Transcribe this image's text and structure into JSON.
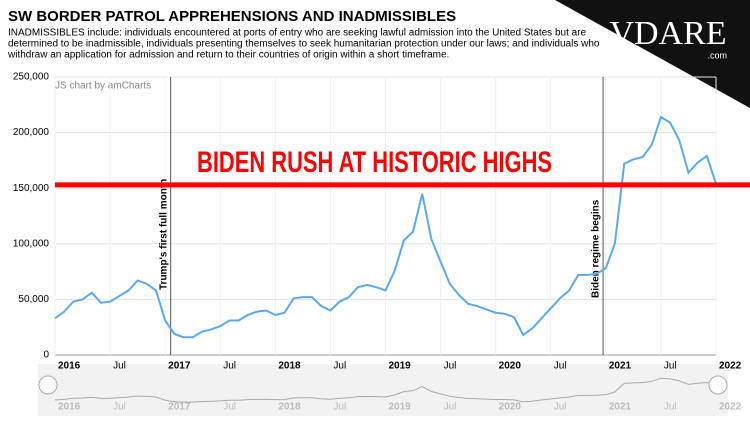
{
  "chart_data": {
    "type": "line",
    "title": "SW BORDER PATROL APPREHENSIONS AND INADMISSIBLES",
    "subtitle": [
      "INADMISSIBLES include: individuals encountered at ports of entry who are seeking lawful admission into the United States but are",
      "determined to be inadmissible, individuals presenting themselves to seek humanitarian protection under our laws; and individuals who",
      "withdraw an application for admission and return to their countries of origin within a short timeframe."
    ],
    "credit": "JS chart by amCharts",
    "logo": "VDARE",
    "logo_suffix": ".com",
    "annotations": [
      "Trump's first full month",
      "Biden regime begins"
    ],
    "reference_line": {
      "value": 153000,
      "label": "BIDEN RUSH AT HISTORIC HIGHS",
      "color": "#ff0000"
    },
    "categories": [
      "2016",
      null,
      null,
      null,
      null,
      null,
      "Jul",
      null,
      null,
      null,
      null,
      null,
      "2017",
      null,
      null,
      null,
      null,
      null,
      "Jul",
      null,
      null,
      null,
      null,
      null,
      "2018",
      null,
      null,
      null,
      null,
      null,
      "Jul",
      null,
      null,
      null,
      null,
      null,
      "2019",
      null,
      null,
      null,
      null,
      null,
      "Jul",
      null,
      null,
      null,
      null,
      null,
      "2020",
      null,
      null,
      null,
      null,
      null,
      "Jul",
      null,
      null,
      null,
      null,
      null,
      "2021",
      null,
      null,
      null,
      null,
      null,
      "Jul",
      null,
      null,
      null,
      null,
      null,
      "2022"
    ],
    "series": [
      {
        "color": "#5aa9f0",
        "values": [
          33000,
          39000,
          48000,
          50000,
          56000,
          47000,
          48000,
          53000,
          58000,
          67000,
          64000,
          58000,
          31000,
          19000,
          16000,
          16000,
          21000,
          23000,
          26000,
          31000,
          31000,
          36000,
          39000,
          40000,
          36000,
          38000,
          51000,
          52000,
          52000,
          44000,
          40000,
          48000,
          52000,
          61000,
          63000,
          61000,
          58000,
          76000,
          103000,
          111000,
          145000,
          104000,
          84000,
          64000,
          54000,
          46000,
          44000,
          41000,
          38000,
          37000,
          34000,
          18000,
          24000,
          33000,
          42000,
          51000,
          58000,
          72000,
          72000,
          73000,
          78000,
          101000,
          172000,
          176000,
          178000,
          189000,
          214000,
          209000,
          193000,
          164000,
          173000,
          179000,
          154000
        ]
      }
    ],
    "ylim": [
      0,
      250000
    ],
    "yticks": [
      0,
      {
        "value": 50000,
        "label": "50,000"
      },
      {
        "value": 100000,
        "label": "100,000"
      },
      {
        "value": 150000,
        "label": "150,000"
      },
      {
        "value": 200000,
        "label": "200,000"
      },
      {
        "value": 250000,
        "label": "250,000"
      }
    ],
    "grid": true
  }
}
